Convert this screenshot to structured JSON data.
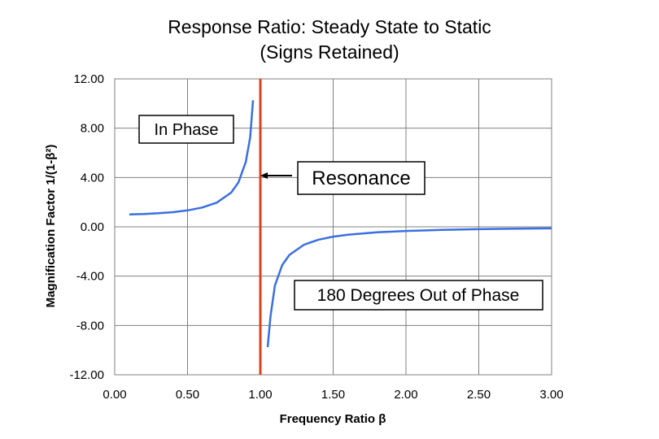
{
  "chart_data": {
    "type": "line",
    "title_line1": "Response Ratio: Steady State to Static",
    "title_line2": "(Signs Retained)",
    "xlabel": "Frequency Ratio β",
    "ylabel": "Magnification Factor 1/(1-β²)",
    "xlim": [
      0,
      3
    ],
    "ylim": [
      -12,
      12
    ],
    "x_ticks": [
      "0.00",
      "0.50",
      "1.00",
      "1.50",
      "2.00",
      "2.50",
      "3.00"
    ],
    "y_ticks": [
      "12.00",
      "8.00",
      "4.00",
      "0.00",
      "-4.00",
      "-8.00",
      "-12.00"
    ],
    "grid": true,
    "series": [
      {
        "color": "#3a6fe0",
        "segments": [
          [
            [
              0.1,
              1.01
            ],
            [
              0.2,
              1.042
            ],
            [
              0.3,
              1.099
            ],
            [
              0.4,
              1.19
            ],
            [
              0.5,
              1.333
            ],
            [
              0.6,
              1.5625
            ],
            [
              0.7,
              1.961
            ],
            [
              0.8,
              2.778
            ],
            [
              0.85,
              3.604
            ],
            [
              0.9,
              5.263
            ],
            [
              0.93,
              7.25
            ],
            [
              0.95,
              10.26
            ]
          ],
          [
            [
              1.05,
              -9.76
            ],
            [
              1.07,
              -7.25
            ],
            [
              1.1,
              -4.76
            ],
            [
              1.15,
              -3.101
            ],
            [
              1.2,
              -2.273
            ],
            [
              1.3,
              -1.449
            ],
            [
              1.4,
              -1.042
            ],
            [
              1.5,
              -0.8
            ],
            [
              1.6,
              -0.641
            ],
            [
              1.8,
              -0.446
            ],
            [
              2.0,
              -0.333
            ],
            [
              2.25,
              -0.246
            ],
            [
              2.5,
              -0.19
            ],
            [
              2.75,
              -0.152
            ],
            [
              3.0,
              -0.125
            ]
          ]
        ]
      }
    ],
    "vertical_line": {
      "x": 1.0,
      "color": "#e0401a"
    },
    "annotations": {
      "in_phase": "In Phase",
      "resonance": "Resonance",
      "out_of_phase": "180 Degrees Out of Phase"
    }
  }
}
